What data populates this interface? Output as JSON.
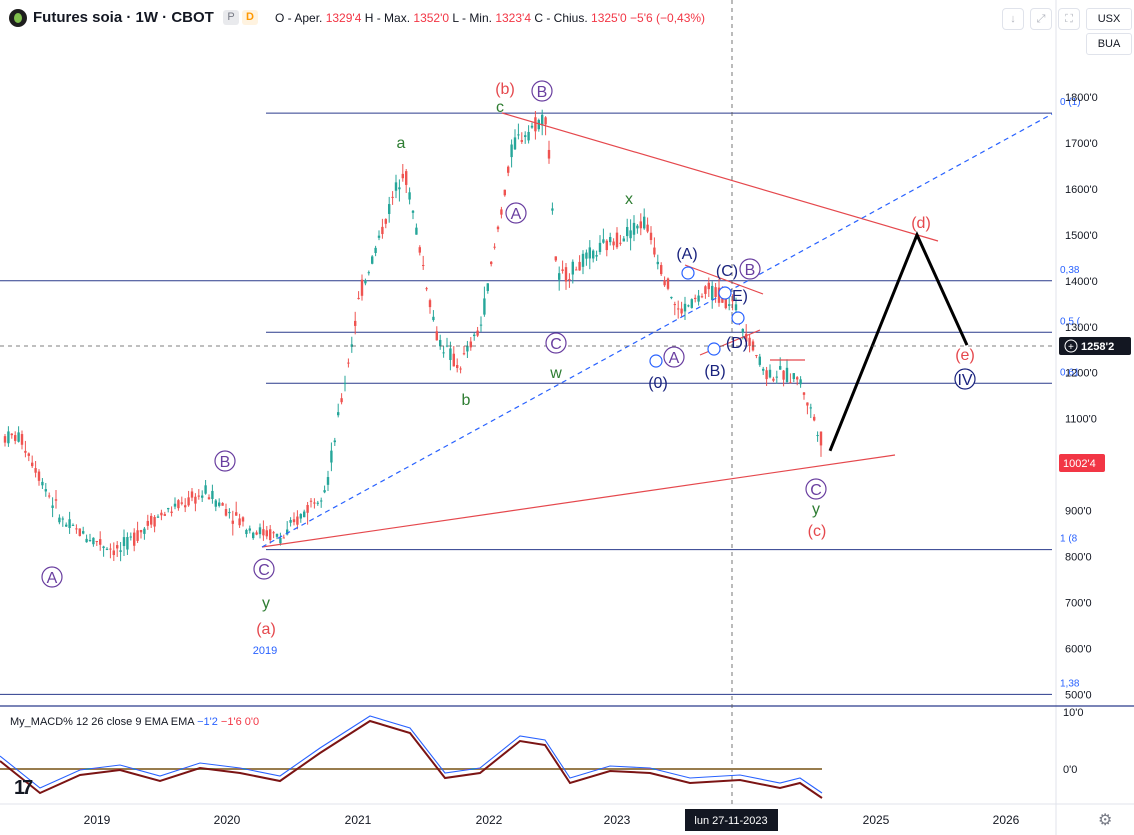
{
  "header": {
    "title": "Futures soia · 1W · CBOT",
    "badge_p": "P",
    "badge_d": "D",
    "ohlc_prefix": "O - Aper.",
    "open": "1329'4",
    "high_label": "H - Max.",
    "high": "1352'0",
    "low_label": "L - Min.",
    "low": "1323'4",
    "close_label": "C - Chius.",
    "close": "1325'0",
    "change": "−5'6 (−0,43%)"
  },
  "toolbar": {
    "arrow_icon": "↓",
    "expand_icon": "⤢",
    "fullscreen_icon": "⛶"
  },
  "currency": {
    "currency": "USX",
    "unit": "BUA"
  },
  "price_scale": {
    "ticks": [
      "1800'0",
      "1700'0",
      "1600'0",
      "1500'0",
      "1400'0",
      "1300'0",
      "1200'0",
      "1100'0",
      "1000'0",
      "900'0",
      "800'0",
      "700'0",
      "600'0",
      "500'0"
    ],
    "crosshair_price": "1258'2",
    "last_price": "1002'4",
    "fib_labels": [
      "0 (1)",
      "0,38",
      "0,5 (",
      "0,61",
      "1 (8",
      "1,38"
    ]
  },
  "time_axis": {
    "labels": [
      "2019",
      "2020",
      "2021",
      "2022",
      "2023",
      "2025",
      "2026"
    ],
    "crosshair_date": "lun 27-11-2023"
  },
  "macd": {
    "legend_name": "My_MACD%",
    "legend_params": "12 26 close 9 EMA EMA",
    "v1": "−1'2",
    "v2": "−1'6",
    "v3": "0'0",
    "scale_ticks": [
      "10'0",
      "0'0"
    ]
  },
  "annotations": {
    "A_low": "A",
    "B_2019": "B",
    "C_2020": "C",
    "y_2020": "y",
    "a_paren": "(a)",
    "year_2019": "2019",
    "a_green": "a",
    "b_green": "b",
    "c_green": "c",
    "b_paren": "(b)",
    "B_top": "B",
    "A_mid": "A",
    "C_mid": "C",
    "w_green": "w",
    "x_green": "x",
    "A_paren": "(A)",
    "zero_paren": "(0)",
    "A_small": "A",
    "B_paren": "(B)",
    "C_paren": "(C)",
    "B_circ": "B",
    "E_paren": "E)",
    "D_paren": "(D)",
    "C_low": "C",
    "y_low": "y",
    "c_paren": "(c)",
    "d_paren": "(d)",
    "e_paren": "(e)",
    "IV": "IV"
  },
  "colors": {
    "up": "#26a69a",
    "down": "#ef5350",
    "red": "#e5484d",
    "green": "#2e7d32",
    "blue": "#2962ff",
    "purple": "#6a3fa0",
    "navy": "#1a237e",
    "fib": "#2a3a8c"
  },
  "chart_data": {
    "type": "line",
    "title": "Futures soia · 1W · CBOT",
    "xlabel": "",
    "ylabel": "",
    "ylim": [
      500,
      1800
    ],
    "x": [
      "2018-06",
      "2018-10",
      "2019-03",
      "2019-06",
      "2019-11",
      "2020-03",
      "2020-06",
      "2020-10",
      "2021-01",
      "2021-05",
      "2021-08",
      "2021-10",
      "2021-12",
      "2022-03",
      "2022-06",
      "2022-07",
      "2022-11",
      "2023-03",
      "2023-06",
      "2023-09",
      "2023-11",
      "2024-02",
      "2024-05",
      "2024-08"
    ],
    "series": [
      {
        "values": [
          1060,
          870,
          810,
          880,
          940,
          860,
          840,
          960,
          1370,
          1650,
          1280,
          1210,
          1300,
          1700,
          1760,
          1400,
          1470,
          1530,
          1330,
          1380,
          1350,
          1200,
          1190,
          1000
        ]
      }
    ],
    "projection": {
      "x": [
        "2024-08",
        "2025-05",
        "2025-09"
      ],
      "values": [
        1030,
        1500,
        1260
      ]
    },
    "fib_levels": [
      {
        "label": "0 (1)",
        "value": 1765
      },
      {
        "label": "0,38",
        "value": 1400
      },
      {
        "label": "0,5 (",
        "value": 1288
      },
      {
        "label": "0,61",
        "value": 1177
      },
      {
        "label": "1 (8",
        "value": 815
      },
      {
        "label": "1,38",
        "value": 500
      }
    ]
  }
}
